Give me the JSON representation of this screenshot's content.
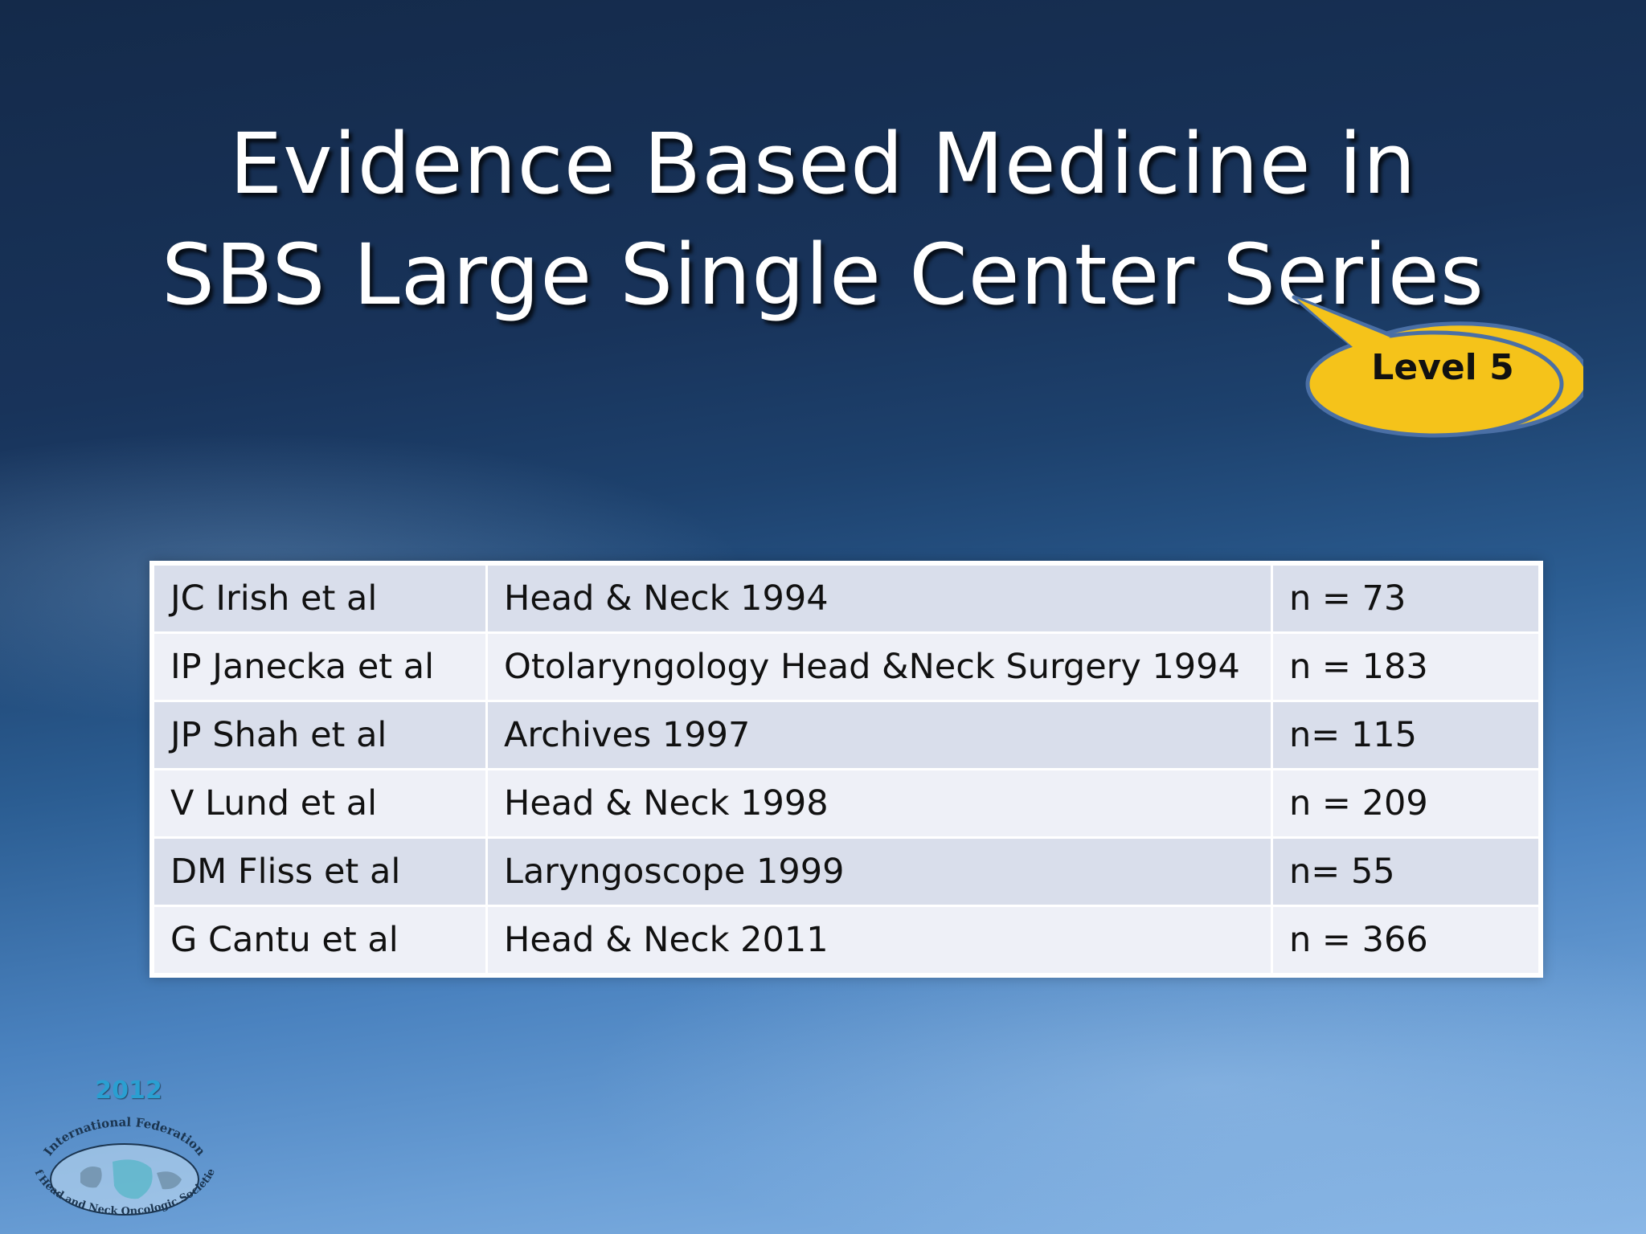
{
  "slide": {
    "title_line1": "Evidence Based Medicine in",
    "title_line2": "SBS Large Single Center Series",
    "callout": "Level 5"
  },
  "table": {
    "rows": [
      {
        "author": "JC Irish et al",
        "journal": "Head & Neck 1994",
        "n": "n = 73"
      },
      {
        "author": "IP Janecka et al",
        "journal": "Otolaryngology Head &Neck Surgery 1994",
        "n": "n = 183"
      },
      {
        "author": "JP Shah et al",
        "journal": "Archives 1997",
        "n": "n= 115"
      },
      {
        "author": "V Lund et al",
        "journal": "Head & Neck 1998",
        "n": "n = 209"
      },
      {
        "author": "DM Fliss et al",
        "journal": "Laryngoscope 1999",
        "n": "n= 55"
      },
      {
        "author": "G Cantu et al",
        "journal": "Head & Neck 2011",
        "n": "n = 366"
      }
    ]
  },
  "logo": {
    "year": "2012",
    "text_top": "International Federation",
    "text_bottom": "of Head and Neck Oncologic Societies"
  },
  "colors": {
    "callout_fill": "#f5c31a",
    "callout_stroke": "#4a6fa5",
    "row_dark": "#d9deeb",
    "row_light": "#eef0f7"
  }
}
